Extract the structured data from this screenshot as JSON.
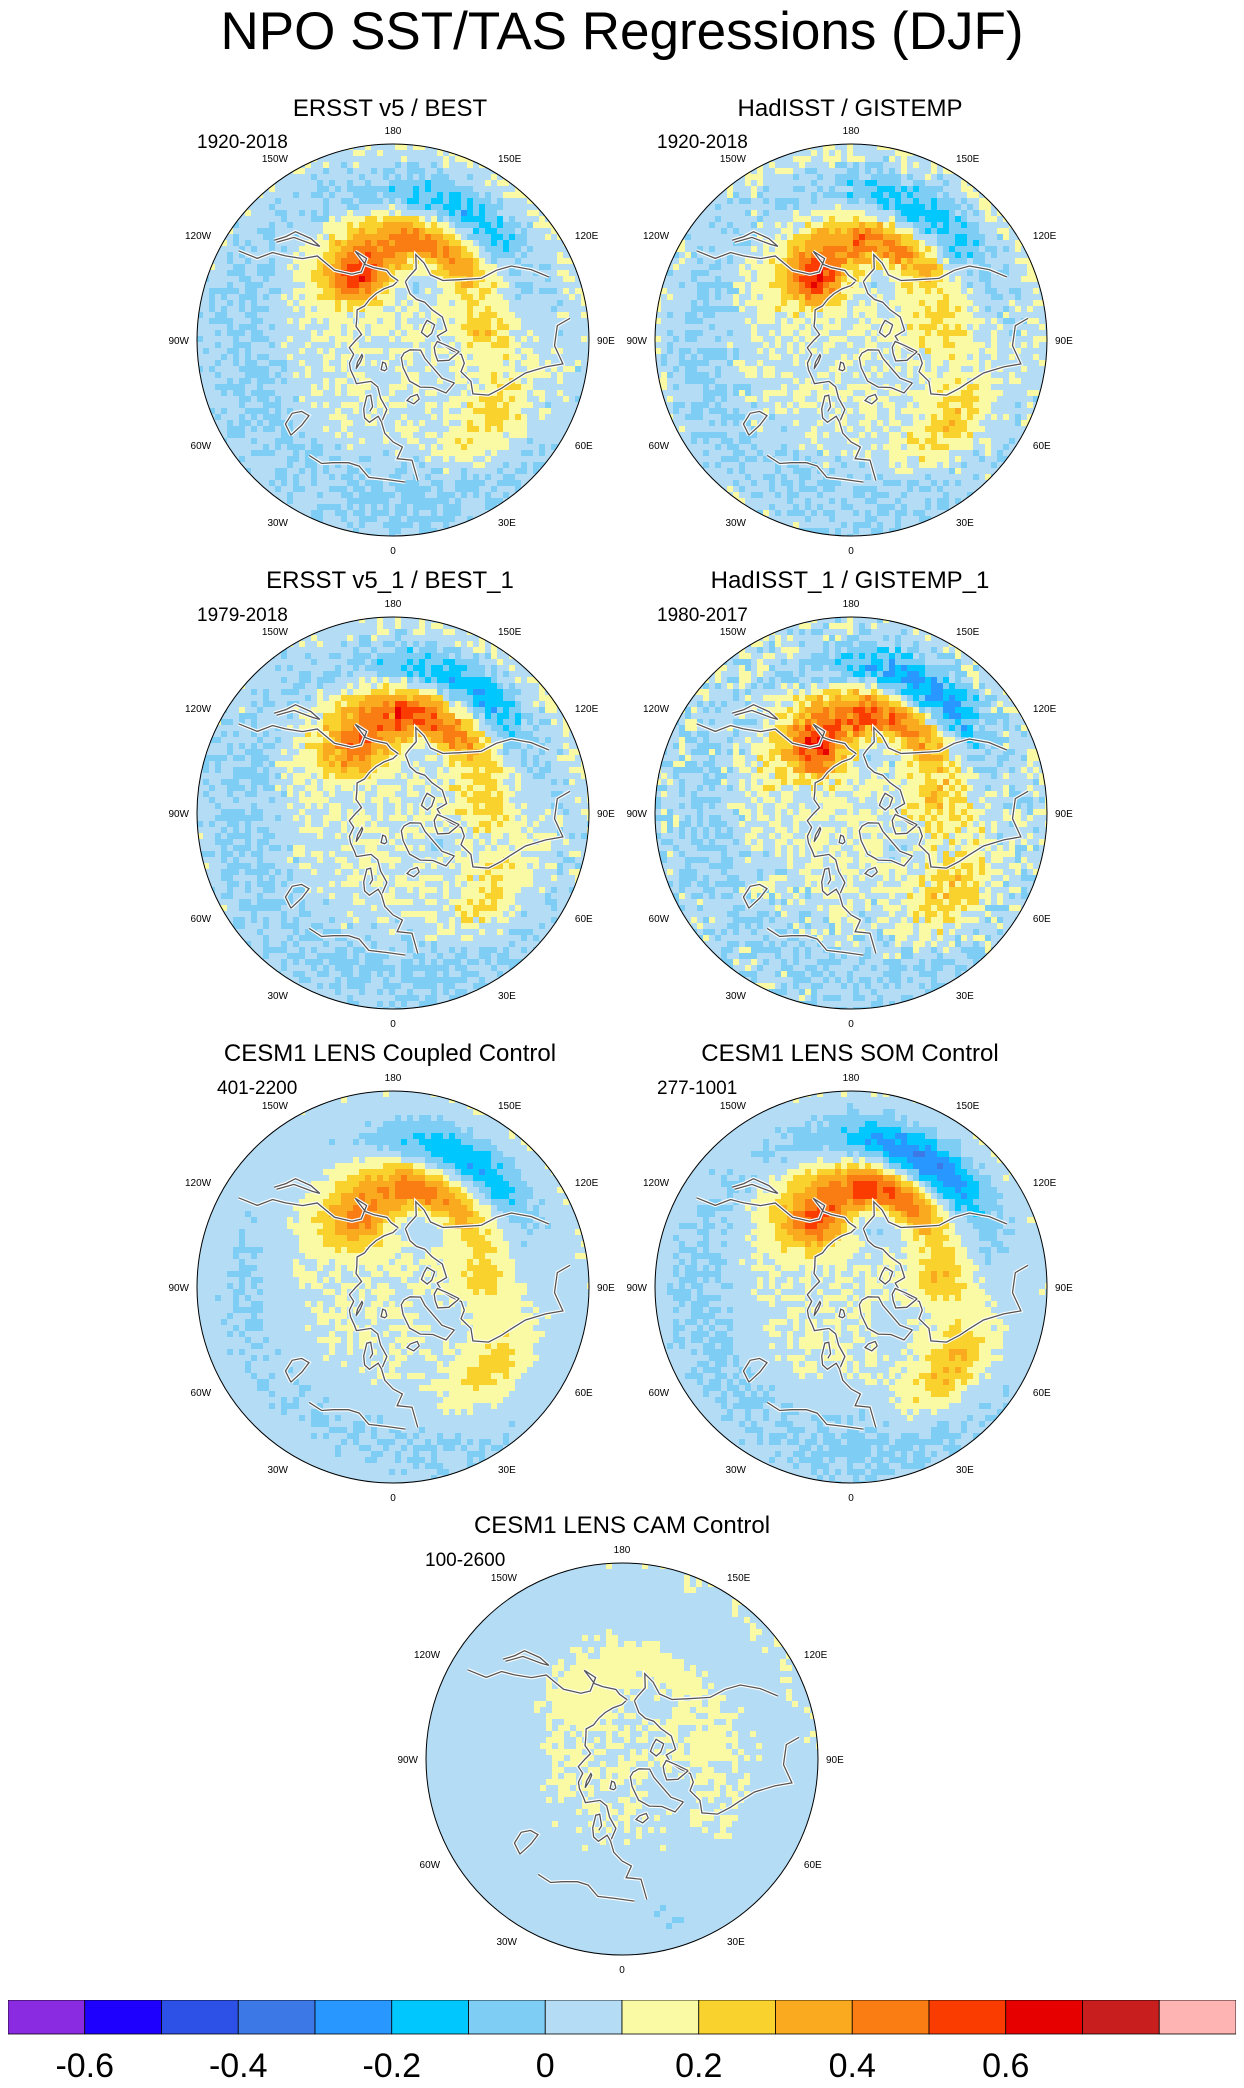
{
  "title": "NPO SST/TAS Regressions (DJF)",
  "lon_labels": [
    "180",
    "150E",
    "120E",
    "90E",
    "60E",
    "30E",
    "0",
    "30W",
    "60W",
    "90W",
    "120W",
    "150W"
  ],
  "panels": [
    {
      "title": "ERSST v5 / BEST",
      "period": "1920-2018",
      "pattern": {
        "npo_pos": 0.42,
        "npo_neg": -0.3,
        "asia": 0.5,
        "atl": 0.22,
        "nam": -0.12,
        "noise": 0.06
      }
    },
    {
      "title": "HadISST / GISTEMP",
      "period": "1920-2018",
      "pattern": {
        "npo_pos": 0.4,
        "npo_neg": -0.3,
        "asia": 0.55,
        "atl": 0.22,
        "nam": -0.1,
        "noise": 0.07
      }
    },
    {
      "title": "ERSST v5_1 / BEST_1",
      "period": "1979-2018",
      "pattern": {
        "npo_pos": 0.5,
        "npo_neg": -0.33,
        "asia": 0.35,
        "atl": 0.2,
        "nam": -0.12,
        "noise": 0.07
      }
    },
    {
      "title": "HadISST_1 / GISTEMP_1",
      "period": "1980-2017",
      "pattern": {
        "npo_pos": 0.48,
        "npo_neg": -0.38,
        "asia": 0.5,
        "atl": 0.22,
        "nam": -0.1,
        "noise": 0.09
      }
    },
    {
      "title": "CESM1 LENS Coupled Control",
      "period": "401-2200",
      "pattern": {
        "npo_pos": 0.42,
        "npo_neg": -0.33,
        "asia": 0.3,
        "atl": 0.2,
        "nam": -0.1,
        "noise": 0.03
      }
    },
    {
      "title": "CESM1 LENS SOM Control",
      "period": "277-1001",
      "pattern": {
        "npo_pos": 0.52,
        "npo_neg": -0.45,
        "asia": 0.38,
        "atl": 0.28,
        "nam": -0.12,
        "noise": 0.04
      }
    },
    {
      "title": "CESM1 LENS CAM Control",
      "period": "100-2600",
      "pattern": {
        "npo_pos": 0.05,
        "npo_neg": -0.06,
        "asia": 0.06,
        "atl": 0.04,
        "nam": -0.08,
        "noise": 0.02
      }
    }
  ],
  "colorbar": {
    "colors": [
      "#8a2be2",
      "#1e00ff",
      "#2d50e6",
      "#3c78e6",
      "#2897ff",
      "#00c8ff",
      "#7dcdf5",
      "#b4dcf5",
      "#fafaa5",
      "#fad22d",
      "#faaa1e",
      "#fa7d14",
      "#fa3c00",
      "#e60000",
      "#c81e1e",
      "#ffb4b4"
    ],
    "labels": [
      "-0.6",
      "-0.4",
      "-0.2",
      "0",
      "0.2",
      "0.4",
      "0.6"
    ],
    "levels": [
      -0.7,
      -0.6,
      -0.5,
      -0.4,
      -0.3,
      -0.2,
      -0.1,
      0,
      0.1,
      0.2,
      0.3,
      0.4,
      0.5,
      0.6,
      0.7
    ]
  }
}
